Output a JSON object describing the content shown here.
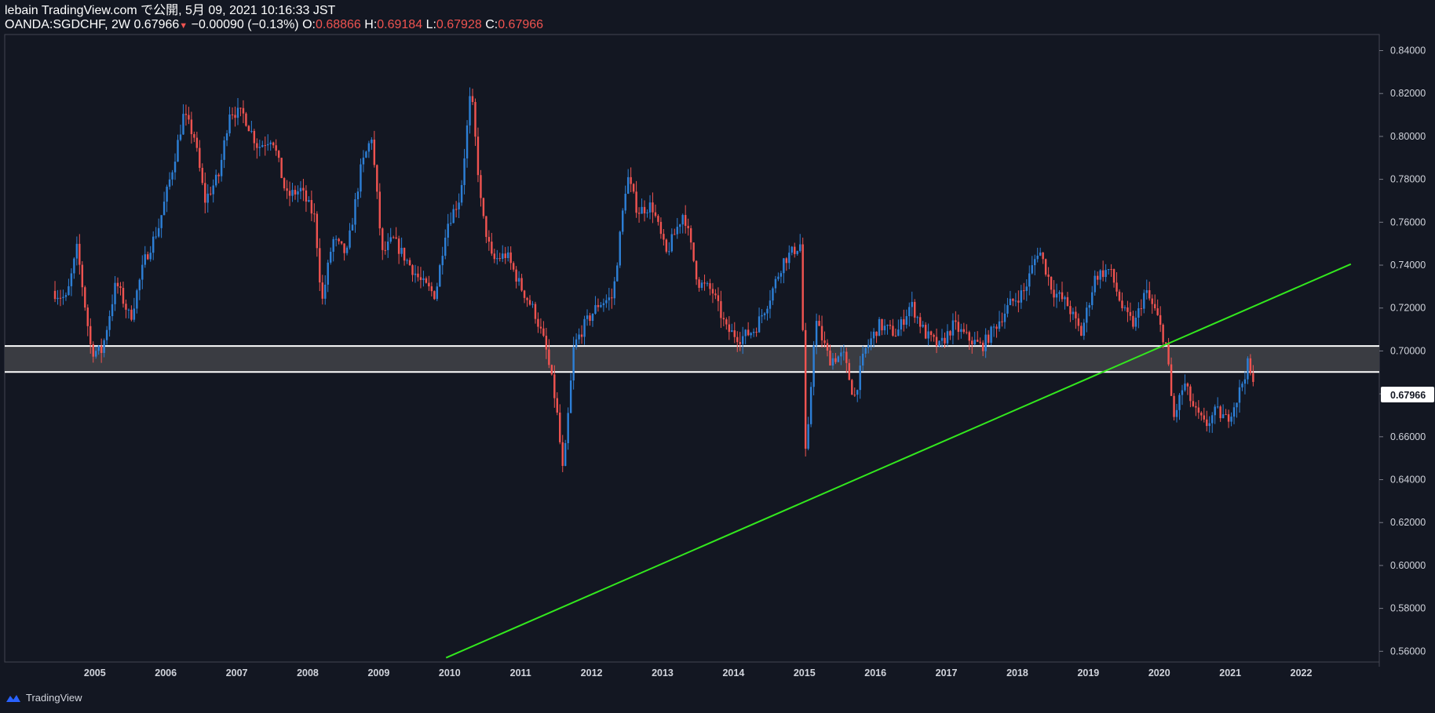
{
  "header": {
    "line1": "lebain TradingView.com で公開, 5月 09, 2021 10:16:33 JST",
    "symbol": "OANDA:SGDCHF, 2W 0.67966",
    "change": " −0.00090 (−0.13%) ",
    "o_label": "O:",
    "o_value": "0.68866",
    "h_label": "H:",
    "h_value": "0.69184",
    "l_label": "L:",
    "l_value": "0.67928",
    "c_label": "C:",
    "c_value": "0.67966"
  },
  "branding": {
    "logo_text": "TradingView"
  },
  "colors": {
    "background": "#131722",
    "up": "#2d7fd6",
    "down": "#ef5350",
    "trendline": "#33e81e",
    "zone_fill": "#3a3c42",
    "zone_lines": "#ffffff",
    "last_price_badge": "#ffffff"
  },
  "chart_data": {
    "type": "candlestick",
    "interval": "2W",
    "y_axis": {
      "position": "right",
      "ylim": [
        0.555,
        0.8475
      ],
      "ticks": [
        "0.84000",
        "0.82000",
        "0.80000",
        "0.78000",
        "0.76000",
        "0.74000",
        "0.72000",
        "0.70000",
        "0.68000",
        "0.66000",
        "0.64000",
        "0.62000",
        "0.60000",
        "0.58000",
        "0.56000"
      ],
      "tick_values": [
        0.84,
        0.82,
        0.8,
        0.78,
        0.76,
        0.74,
        0.72,
        0.7,
        0.68,
        0.66,
        0.64,
        0.62,
        0.6,
        0.58,
        0.56
      ],
      "last_price_label": "0.67966",
      "last_price": 0.67966
    },
    "x_axis": {
      "xlim": [
        2003.73,
        2023.1
      ],
      "ticks": [
        "2005",
        "2006",
        "2007",
        "2008",
        "2009",
        "2010",
        "2011",
        "2012",
        "2013",
        "2014",
        "2015",
        "2016",
        "2017",
        "2018",
        "2019",
        "2020",
        "2021",
        "2022"
      ],
      "tick_values": [
        2005,
        2006,
        2007,
        2008,
        2009,
        2010,
        2011,
        2012,
        2013,
        2014,
        2015,
        2016,
        2017,
        2018,
        2019,
        2020,
        2021,
        2022
      ]
    },
    "series_close": [
      [
        2004.4,
        0.728
      ],
      [
        2004.6,
        0.724
      ],
      [
        2004.75,
        0.748
      ],
      [
        2004.95,
        0.7
      ],
      [
        2005.1,
        0.7
      ],
      [
        2005.3,
        0.732
      ],
      [
        2005.5,
        0.715
      ],
      [
        2005.7,
        0.742
      ],
      [
        2005.9,
        0.758
      ],
      [
        2006.1,
        0.786
      ],
      [
        2006.25,
        0.81
      ],
      [
        2006.4,
        0.8
      ],
      [
        2006.55,
        0.77
      ],
      [
        2006.75,
        0.782
      ],
      [
        2006.9,
        0.812
      ],
      [
        2007.1,
        0.81
      ],
      [
        2007.3,
        0.795
      ],
      [
        2007.5,
        0.8
      ],
      [
        2007.7,
        0.772
      ],
      [
        2007.9,
        0.775
      ],
      [
        2008.1,
        0.762
      ],
      [
        2008.2,
        0.722
      ],
      [
        2008.35,
        0.752
      ],
      [
        2008.55,
        0.745
      ],
      [
        2008.75,
        0.785
      ],
      [
        2008.9,
        0.8
      ],
      [
        2009.05,
        0.745
      ],
      [
        2009.2,
        0.752
      ],
      [
        2009.4,
        0.742
      ],
      [
        2009.6,
        0.732
      ],
      [
        2009.8,
        0.726
      ],
      [
        2009.95,
        0.758
      ],
      [
        2010.15,
        0.772
      ],
      [
        2010.3,
        0.822
      ],
      [
        2010.45,
        0.765
      ],
      [
        2010.6,
        0.742
      ],
      [
        2010.8,
        0.745
      ],
      [
        2011.0,
        0.73
      ],
      [
        2011.2,
        0.718
      ],
      [
        2011.35,
        0.702
      ],
      [
        2011.5,
        0.675
      ],
      [
        2011.6,
        0.642
      ],
      [
        2011.75,
        0.702
      ],
      [
        2011.9,
        0.712
      ],
      [
        2012.1,
        0.722
      ],
      [
        2012.3,
        0.725
      ],
      [
        2012.5,
        0.782
      ],
      [
        2012.65,
        0.765
      ],
      [
        2012.85,
        0.768
      ],
      [
        2013.05,
        0.745
      ],
      [
        2013.3,
        0.765
      ],
      [
        2013.5,
        0.732
      ],
      [
        2013.7,
        0.728
      ],
      [
        2013.9,
        0.71
      ],
      [
        2014.1,
        0.706
      ],
      [
        2014.3,
        0.71
      ],
      [
        2014.5,
        0.724
      ],
      [
        2014.7,
        0.742
      ],
      [
        2014.95,
        0.75
      ],
      [
        2015.02,
        0.645
      ],
      [
        2015.15,
        0.715
      ],
      [
        2015.35,
        0.696
      ],
      [
        2015.55,
        0.698
      ],
      [
        2015.7,
        0.678
      ],
      [
        2015.85,
        0.7
      ],
      [
        2016.05,
        0.712
      ],
      [
        2016.3,
        0.708
      ],
      [
        2016.5,
        0.722
      ],
      [
        2016.7,
        0.708
      ],
      [
        2016.9,
        0.702
      ],
      [
        2017.1,
        0.712
      ],
      [
        2017.3,
        0.706
      ],
      [
        2017.5,
        0.702
      ],
      [
        2017.7,
        0.712
      ],
      [
        2017.9,
        0.722
      ],
      [
        2018.1,
        0.728
      ],
      [
        2018.3,
        0.748
      ],
      [
        2018.5,
        0.728
      ],
      [
        2018.7,
        0.722
      ],
      [
        2018.9,
        0.708
      ],
      [
        2019.1,
        0.735
      ],
      [
        2019.3,
        0.738
      ],
      [
        2019.5,
        0.718
      ],
      [
        2019.65,
        0.712
      ],
      [
        2019.8,
        0.728
      ],
      [
        2019.95,
        0.718
      ],
      [
        2020.1,
        0.702
      ],
      [
        2020.2,
        0.668
      ],
      [
        2020.35,
        0.685
      ],
      [
        2020.5,
        0.672
      ],
      [
        2020.65,
        0.665
      ],
      [
        2020.8,
        0.672
      ],
      [
        2020.95,
        0.668
      ],
      [
        2021.1,
        0.678
      ],
      [
        2021.25,
        0.694
      ],
      [
        2021.35,
        0.68
      ]
    ],
    "trendline": {
      "x": [
        2009.95,
        2022.7
      ],
      "y": [
        0.557,
        0.7405
      ]
    },
    "support_zone": {
      "y_top": 0.7023,
      "y_bottom": 0.6902
    }
  }
}
